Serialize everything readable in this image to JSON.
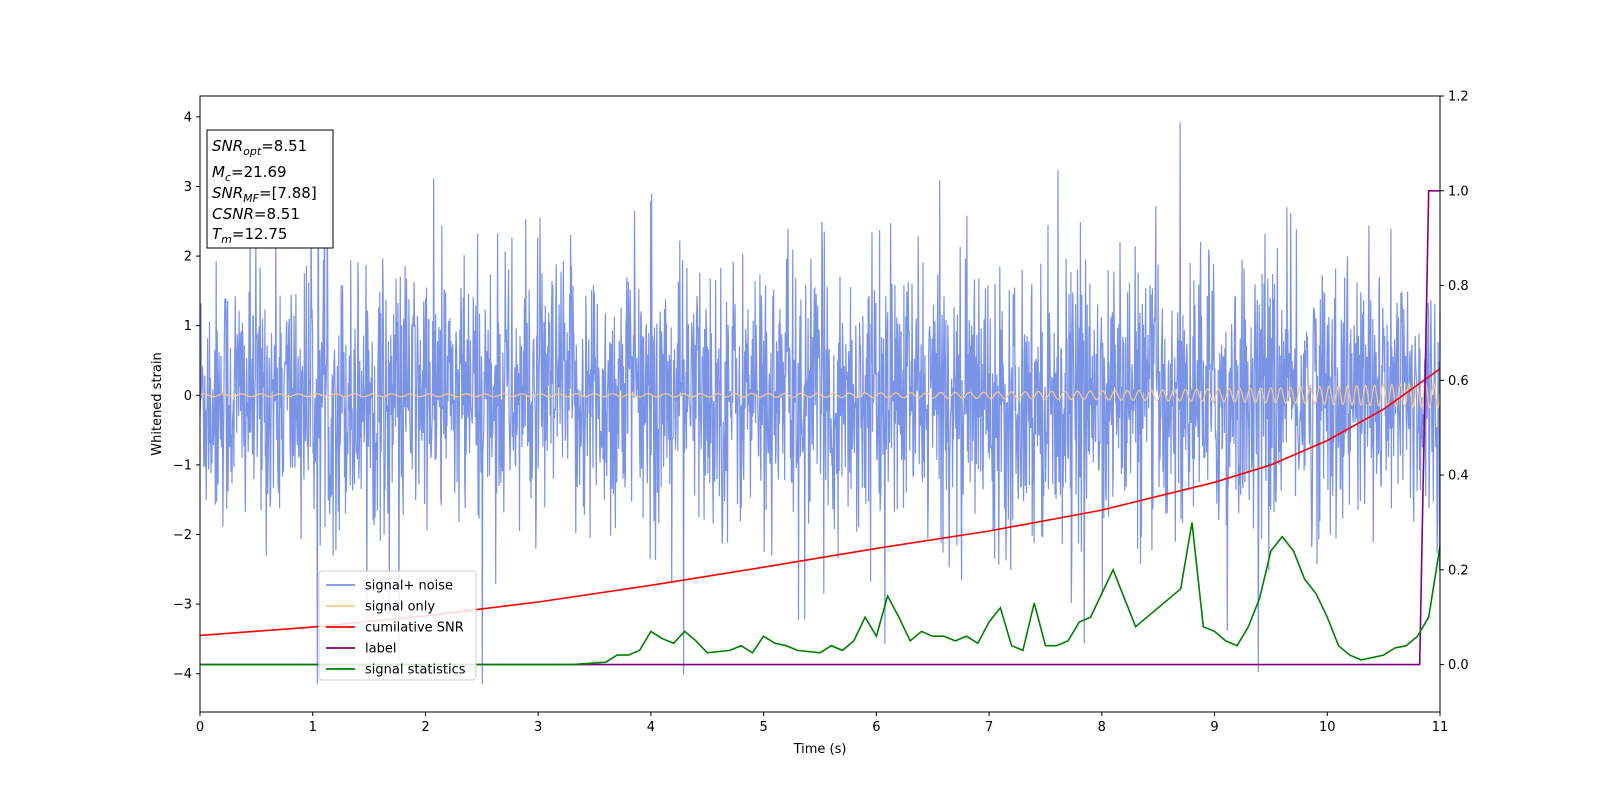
{
  "chart_data": {
    "type": "line",
    "xlabel": "Time (s)",
    "ylabel": "Whitened strain",
    "xlim": [
      0,
      11
    ],
    "ylim_left": [
      -4.55,
      4.3
    ],
    "ylim_right": [
      -0.1,
      1.2
    ],
    "x_ticks": [
      "0",
      "1",
      "2",
      "3",
      "4",
      "5",
      "6",
      "7",
      "8",
      "9",
      "10",
      "11"
    ],
    "y_left_ticks": [
      "−4",
      "−3",
      "−2",
      "−1",
      "0",
      "1",
      "2",
      "3",
      "4"
    ],
    "y_right_ticks": [
      "0.0",
      "0.2",
      "0.4",
      "0.6",
      "0.8",
      "1.0",
      "1.2"
    ],
    "grid": false,
    "legend_position": "lower-left",
    "info_box": {
      "snr_opt": {
        "base": "SNR",
        "sub": "opt",
        "value": "=8.51"
      },
      "mc": {
        "base": "M",
        "sub": "c",
        "value": "=21.69"
      },
      "snr_mf": {
        "base": "SNR",
        "sub": "MF",
        "value": "=[7.88]"
      },
      "csnr": {
        "base": "CSNR",
        "sub": "",
        "value": "=8.51"
      },
      "tm": {
        "base": "T",
        "sub": "m",
        "value": "=12.75"
      }
    },
    "series": [
      {
        "name": "signal+ noise",
        "color": "#7b93e6",
        "axis": "left",
        "note_values": "dense noise series, visually within about -4.15 to 3.9",
        "envelope": {
          "min": -4.15,
          "max": 3.92
        }
      },
      {
        "name": "signal only",
        "color": "#f6c98a",
        "axis": "left",
        "amplitude_start": 0.02,
        "amplitude_end": 0.18,
        "freq_start_hz": 6,
        "freq_end_hz": 14
      },
      {
        "name": "cumilative SNR",
        "color": "#ff0000",
        "axis": "left",
        "x": [
          0,
          1,
          2,
          3,
          4,
          5,
          6,
          7,
          8,
          9,
          9.5,
          10,
          10.5,
          11
        ],
        "y": [
          -3.45,
          -3.33,
          -3.17,
          -2.97,
          -2.73,
          -2.47,
          -2.2,
          -1.95,
          -1.65,
          -1.25,
          -1.0,
          -0.65,
          -0.2,
          0.38
        ]
      },
      {
        "name": "label",
        "color": "#800080",
        "axis": "right",
        "x": [
          0,
          10.82,
          10.9,
          11
        ],
        "y": [
          0.0,
          0.0,
          1.0,
          1.0
        ]
      },
      {
        "name": "signal statistics",
        "color": "#008000",
        "axis": "right",
        "x": [
          0,
          0.5,
          1,
          1.5,
          2,
          2.5,
          3,
          3.3,
          3.6,
          3.7,
          3.8,
          3.9,
          4.0,
          4.1,
          4.2,
          4.3,
          4.4,
          4.5,
          4.7,
          4.8,
          4.9,
          5.0,
          5.1,
          5.2,
          5.3,
          5.5,
          5.6,
          5.7,
          5.8,
          5.9,
          6.0,
          6.1,
          6.2,
          6.3,
          6.4,
          6.5,
          6.6,
          6.7,
          6.8,
          6.9,
          7.0,
          7.1,
          7.2,
          7.3,
          7.4,
          7.5,
          7.6,
          7.7,
          7.8,
          7.9,
          8.0,
          8.1,
          8.2,
          8.3,
          8.4,
          8.5,
          8.6,
          8.7,
          8.8,
          8.9,
          9.0,
          9.1,
          9.2,
          9.3,
          9.4,
          9.5,
          9.6,
          9.7,
          9.8,
          9.9,
          10.0,
          10.1,
          10.2,
          10.3,
          10.4,
          10.5,
          10.6,
          10.7,
          10.8,
          10.9,
          11.0
        ],
        "y": [
          0.0,
          0.0,
          0.0,
          0.0,
          0.0,
          0.0,
          0.0,
          0.0,
          0.005,
          0.02,
          0.02,
          0.03,
          0.07,
          0.055,
          0.045,
          0.07,
          0.05,
          0.025,
          0.03,
          0.04,
          0.025,
          0.06,
          0.045,
          0.04,
          0.03,
          0.025,
          0.04,
          0.03,
          0.05,
          0.1,
          0.06,
          0.145,
          0.1,
          0.05,
          0.07,
          0.06,
          0.06,
          0.05,
          0.06,
          0.045,
          0.09,
          0.12,
          0.04,
          0.03,
          0.13,
          0.04,
          0.04,
          0.05,
          0.09,
          0.1,
          0.15,
          0.2,
          0.14,
          0.08,
          0.1,
          0.12,
          0.14,
          0.16,
          0.3,
          0.08,
          0.07,
          0.05,
          0.04,
          0.08,
          0.14,
          0.24,
          0.27,
          0.24,
          0.18,
          0.15,
          0.1,
          0.04,
          0.02,
          0.01,
          0.015,
          0.02,
          0.035,
          0.04,
          0.06,
          0.1,
          0.25
        ]
      }
    ]
  }
}
